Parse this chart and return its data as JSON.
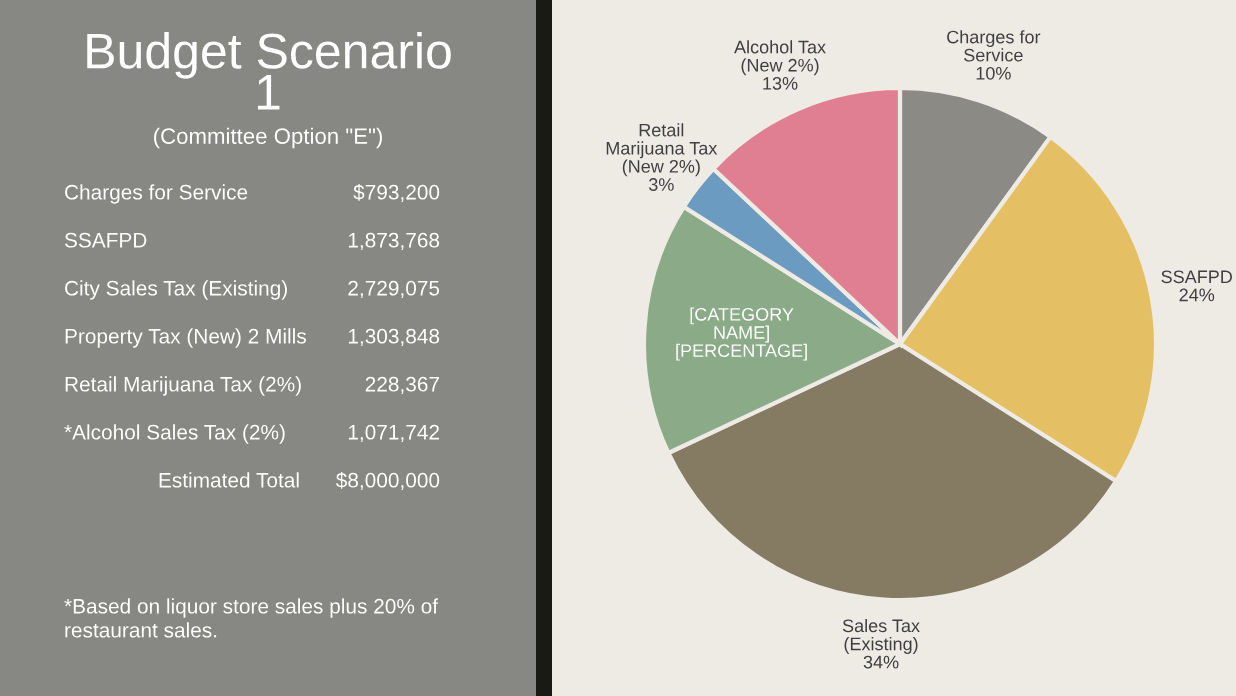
{
  "chart_data": [
    {
      "type": "other",
      "title": "Budget Scenario 1",
      "subtitle": "(Committee Option \"E\")",
      "categories": [
        "Charges for Service",
        "SSAFPD",
        "City Sales Tax (Existing)",
        "Property Tax (New) 2 Mills",
        "Retail Marijuana Tax (2%)",
        "*Alcohol Sales Tax (2%)",
        "Estimated Total"
      ],
      "value_labels": [
        "$793,200",
        "1,873,768",
        "2,729,075",
        "1,303,848",
        "228,367",
        "1,071,742",
        "$8,000,000"
      ],
      "annotations": [
        "*Based on liquor store sales plus 20% of restaurant sales."
      ]
    },
    {
      "type": "pie",
      "categories": [
        "Charges for Service",
        "SSAFPD",
        "Sales Tax (Existing)",
        "[CATEGORY NAME]",
        "Retail Marijuana Tax (New 2%)",
        "Alcohol Tax (New 2%)"
      ],
      "values": [
        10,
        24,
        34,
        16,
        3,
        13
      ],
      "value_labels": [
        "10%",
        "24%",
        "34%",
        "[PERCENTAGE]",
        "3%",
        "13%"
      ],
      "colors": [
        "#8c8a85",
        "#e5bf63",
        "#857a62",
        "#8aaa88",
        "#6b9bc0",
        "#e07f92"
      ]
    }
  ]
}
